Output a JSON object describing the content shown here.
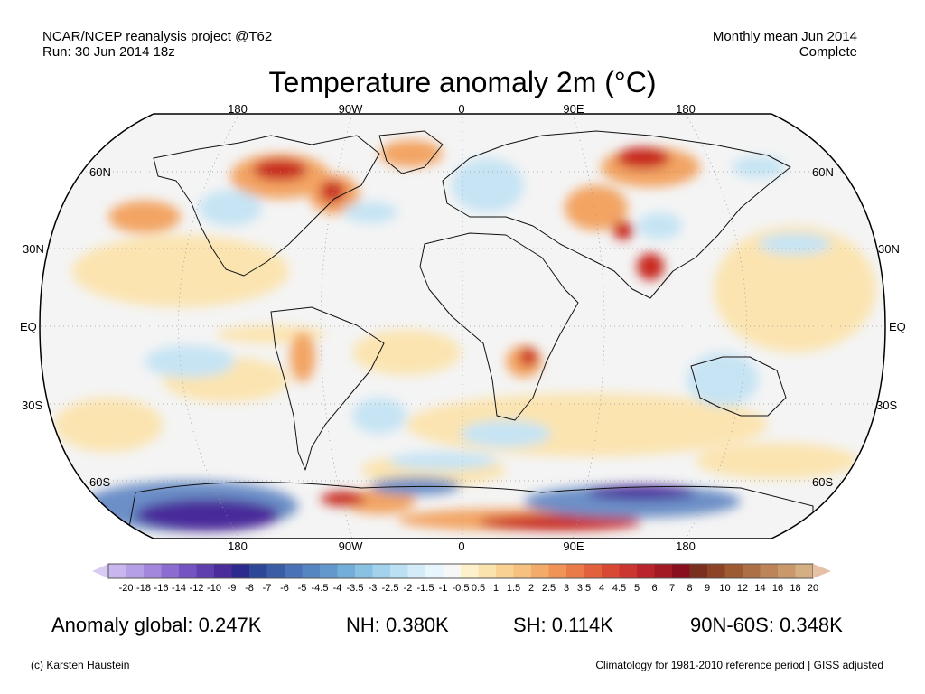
{
  "header": {
    "source_line1": "NCAR/NCEP reanalysis project @T62",
    "source_line2": "Run: 30 Jun 2014 18z",
    "period_line1": "Monthly mean Jun 2014",
    "period_line2": "Complete"
  },
  "title": "Temperature anomaly 2m (°C)",
  "map": {
    "projection": "Robinson",
    "lon_labels_top": [
      "180",
      "90W",
      "0",
      "90E",
      "180"
    ],
    "lon_labels_bottom": [
      "180",
      "90W",
      "0",
      "90E",
      "180"
    ],
    "lat_labels_left": [
      "60N",
      "30N",
      "EQ",
      "30S",
      "60S"
    ],
    "lat_labels_right": [
      "60N",
      "30N",
      "EQ",
      "30S",
      "60S"
    ],
    "colors": {
      "neutral": "#f4f4f4",
      "cold_strong": "#4a2b9a",
      "cold": "#6c8fc7",
      "cool": "#c6e4f4",
      "warm": "#fbe4b0",
      "warm_mid": "#f3a464",
      "hot": "#c8281e"
    }
  },
  "colorbar": {
    "labels": [
      "-20",
      "-18",
      "-16",
      "-14",
      "-12",
      "-10",
      "-9",
      "-8",
      "-7",
      "-6",
      "-5",
      "-4.5",
      "-4",
      "-3.5",
      "-3",
      "-2.5",
      "-2",
      "-1.5",
      "-1",
      "-0.5",
      "0.5",
      "1",
      "1.5",
      "2",
      "2.5",
      "3",
      "3.5",
      "4",
      "4.5",
      "5",
      "6",
      "7",
      "8",
      "9",
      "10",
      "12",
      "14",
      "16",
      "18",
      "20"
    ],
    "colors": [
      "#c9b6ee",
      "#b59fe6",
      "#a287dc",
      "#8c6cd0",
      "#7553c0",
      "#5f3eae",
      "#4b2c9b",
      "#2c2a8c",
      "#2d4696",
      "#3a5da6",
      "#4a72b6",
      "#5686c1",
      "#6299cd",
      "#73aed8",
      "#89c1e3",
      "#a3d2ec",
      "#bbe0f3",
      "#d3ecf8",
      "#e7f5fc",
      "#f7f7f7",
      "#fdf1cc",
      "#fbe3ae",
      "#f9d293",
      "#f6c07f",
      "#f3ab6a",
      "#ef9357",
      "#ea7a48",
      "#e3603c",
      "#d94835",
      "#cc3530",
      "#b9252a",
      "#a21b24",
      "#8a0f1c",
      "#7a2f1f",
      "#8d4426",
      "#9e5a32",
      "#ad6f44",
      "#bc8458",
      "#c9996c",
      "#d6ae84"
    ],
    "low_end_color": "#d9cbf4",
    "high_end_color": "#e7c0a8"
  },
  "stats": {
    "global": "Anomaly global: 0.247K",
    "nh": "NH: 0.380K",
    "sh": "SH: 0.114K",
    "arctic": "90N-60S: 0.348K"
  },
  "footer": {
    "credit": "(c) Karsten Haustein",
    "note": "Climatology for 1981-2010 reference period | GISS adjusted"
  }
}
